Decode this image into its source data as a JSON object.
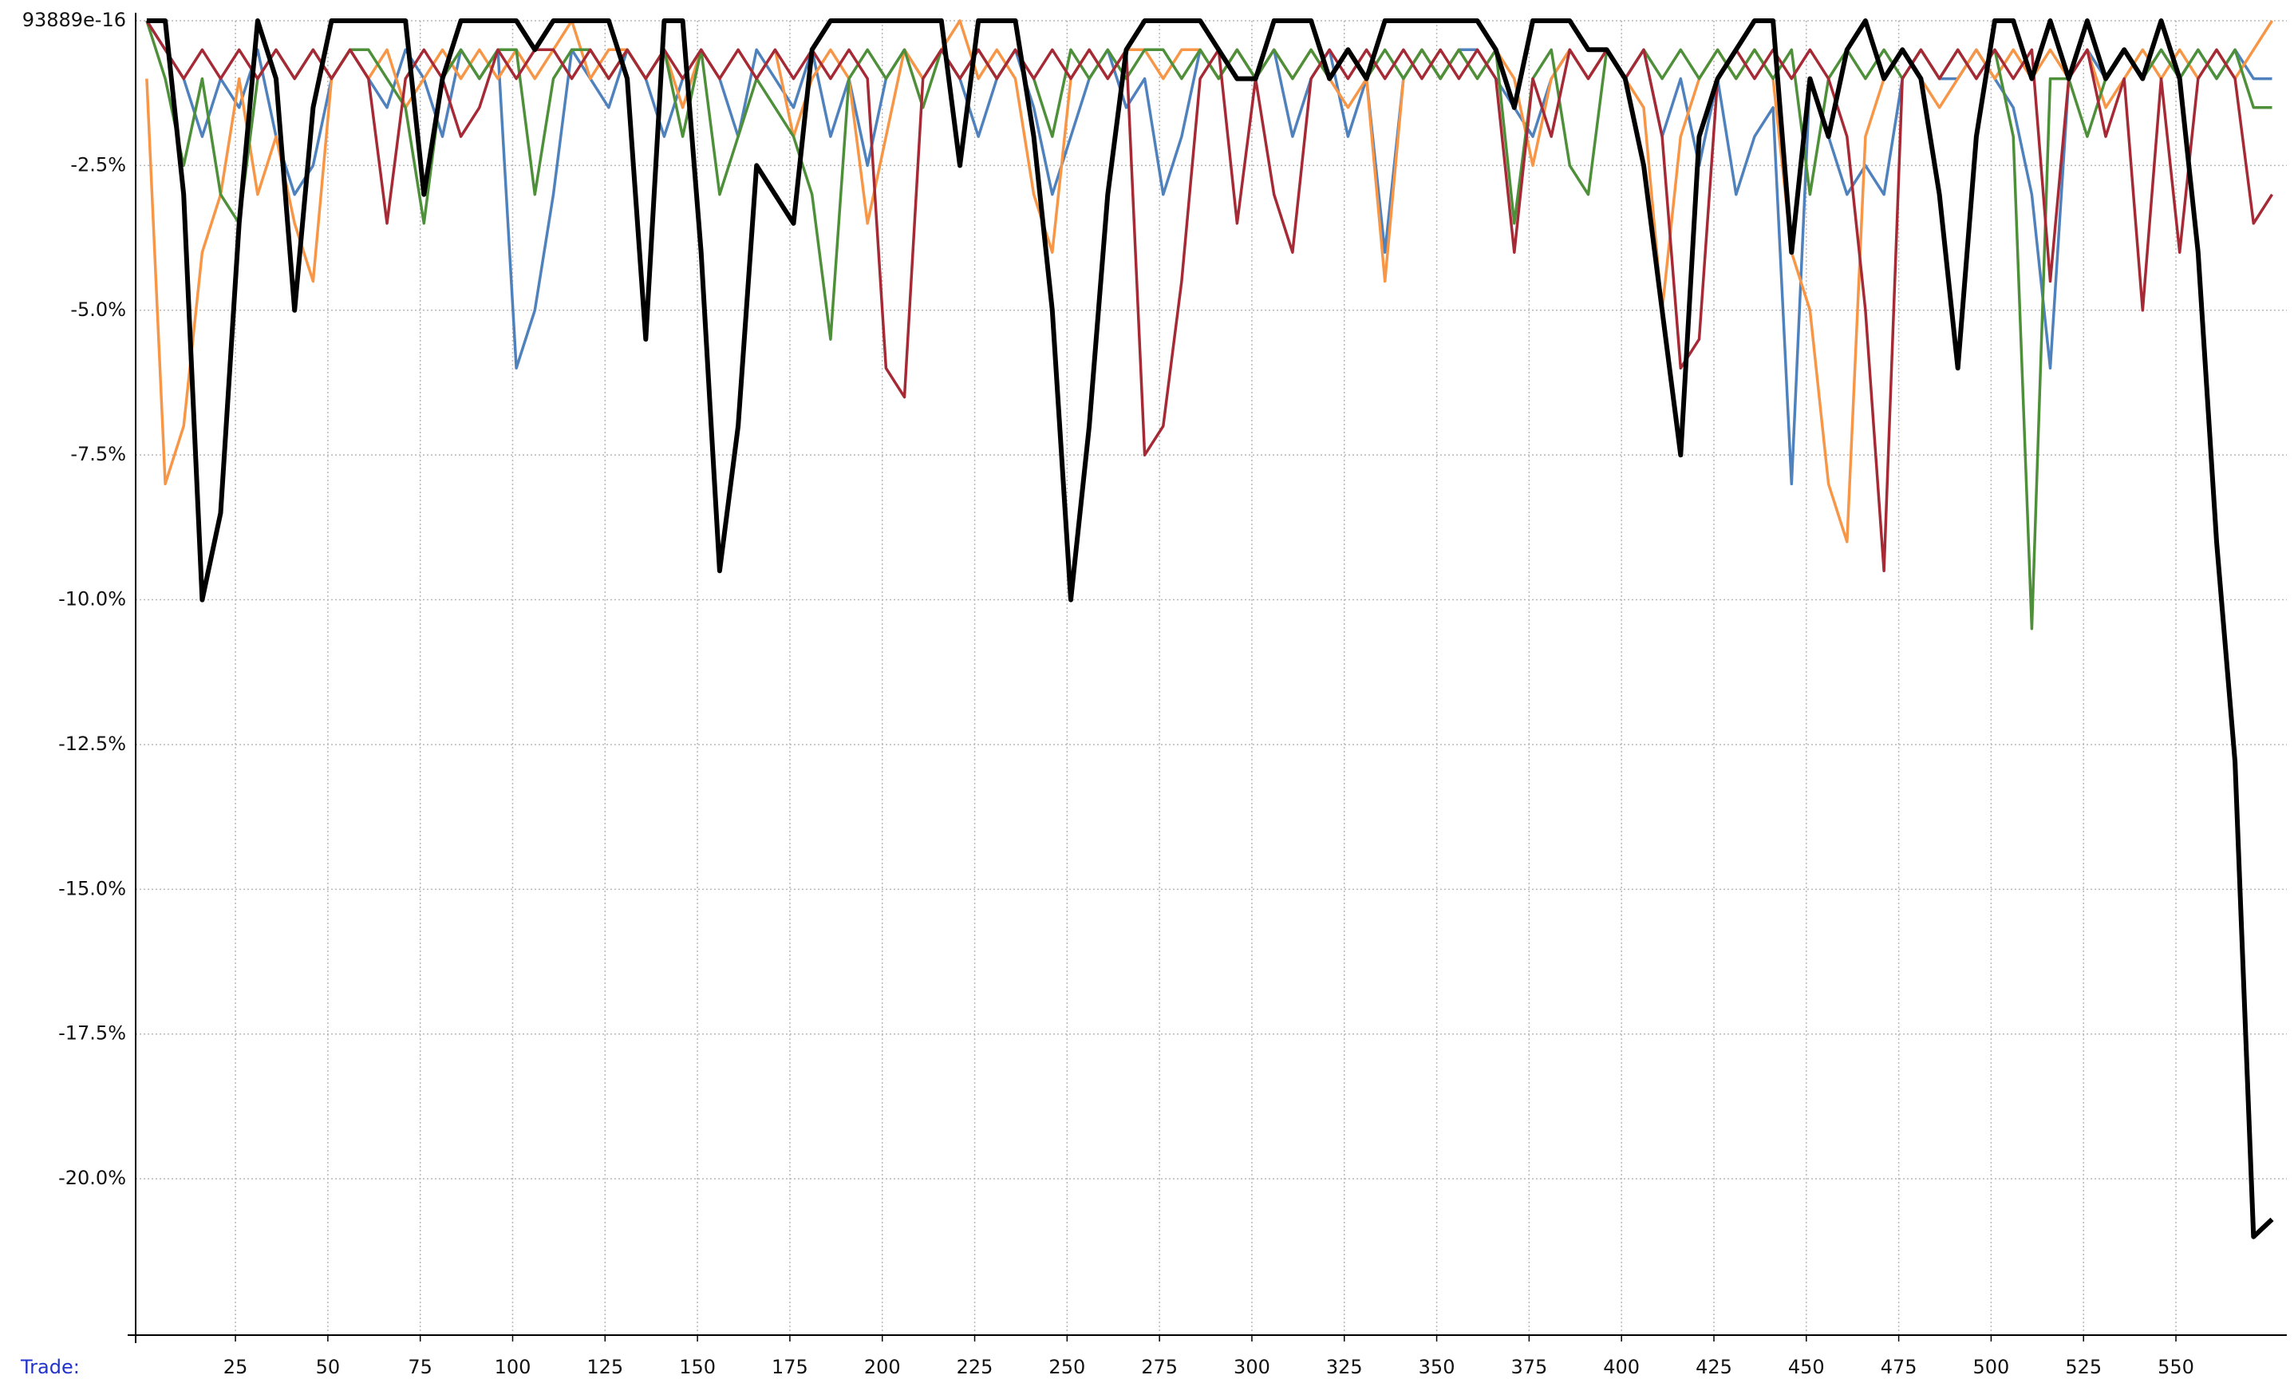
{
  "chart_data": {
    "type": "line",
    "x_label": "Trade:",
    "grid": true,
    "xlim": [
      -2,
      580
    ],
    "ylim": [
      -22.7,
      0
    ],
    "xticks": [
      25,
      50,
      75,
      100,
      125,
      150,
      175,
      200,
      225,
      250,
      275,
      300,
      325,
      350,
      375,
      400,
      425,
      450,
      475,
      500,
      525,
      550
    ],
    "yticks": [
      {
        "value": 0,
        "label": "93889e-16"
      },
      {
        "value": -2.5,
        "label": "-2.5%"
      },
      {
        "value": -5,
        "label": "-5.0%"
      },
      {
        "value": -7.5,
        "label": "-7.5%"
      },
      {
        "value": -10,
        "label": "-10.0%"
      },
      {
        "value": -12.5,
        "label": "-12.5%"
      },
      {
        "value": -15,
        "label": "-15.0%"
      },
      {
        "value": -17.5,
        "label": "-17.5%"
      },
      {
        "value": -20,
        "label": "-20.0%"
      }
    ],
    "x": [
      1,
      6,
      11,
      16,
      21,
      26,
      31,
      36,
      41,
      46,
      51,
      56,
      61,
      66,
      71,
      76,
      81,
      86,
      91,
      96,
      101,
      106,
      111,
      116,
      121,
      126,
      131,
      136,
      141,
      146,
      151,
      156,
      161,
      166,
      171,
      176,
      181,
      186,
      191,
      196,
      201,
      206,
      211,
      216,
      221,
      226,
      231,
      236,
      241,
      246,
      251,
      256,
      261,
      266,
      271,
      276,
      281,
      286,
      291,
      296,
      301,
      306,
      311,
      316,
      321,
      326,
      331,
      336,
      341,
      346,
      351,
      356,
      361,
      366,
      371,
      376,
      381,
      386,
      391,
      396,
      401,
      406,
      411,
      416,
      421,
      426,
      431,
      436,
      441,
      446,
      451,
      456,
      461,
      466,
      471,
      476,
      481,
      486,
      491,
      496,
      501,
      506,
      511,
      516,
      521,
      526,
      531,
      536,
      541,
      546,
      551,
      556,
      561,
      566,
      571,
      576
    ],
    "series": [
      {
        "color": "#4f81bd",
        "values": [
          0,
          -0.5,
          -1,
          -2,
          -1,
          -1.5,
          -0.5,
          -2,
          -3,
          -2.5,
          -1,
          -0.5,
          -1,
          -1.5,
          -0.5,
          -1,
          -2,
          -0.5,
          -1,
          -0.5,
          -6,
          -5,
          -3,
          -0.5,
          -1,
          -1.5,
          -0.5,
          -1,
          -2,
          -1,
          -0.5,
          -1,
          -2,
          -0.5,
          -1,
          -1.5,
          -0.5,
          -2,
          -1,
          -2.5,
          -1,
          -0.5,
          -1,
          -0.5,
          -1,
          -2,
          -1,
          -0.5,
          -1.5,
          -3,
          -2,
          -1,
          -0.5,
          -1.5,
          -1,
          -3,
          -2,
          -0.5,
          -1,
          -0.5,
          -1,
          -0.5,
          -2,
          -1,
          -0.5,
          -2,
          -1,
          -4,
          -1,
          -0.5,
          -1,
          -0.5,
          -0.5,
          -1,
          -1.5,
          -2,
          -1,
          -0.5,
          -1,
          -0.5,
          -1,
          -0.5,
          -2,
          -1,
          -2.5,
          -1,
          -3,
          -2,
          -1.5,
          -8,
          -1,
          -2,
          -3,
          -2.5,
          -3,
          -1,
          -0.5,
          -1,
          -1,
          -0.5,
          -1,
          -1.5,
          -3,
          -6,
          -1,
          -0.5,
          -1,
          -0.5,
          -1,
          -0.5,
          -1,
          -0.5,
          -1,
          -0.5,
          -1,
          -1
        ]
      },
      {
        "color": "#f79646",
        "values": [
          -1,
          -8,
          -7,
          -4,
          -3,
          -1,
          -3,
          -2,
          -3.5,
          -4.5,
          -1,
          -0.5,
          -1,
          -0.5,
          -1.5,
          -1,
          -0.5,
          -1,
          -0.5,
          -1,
          -0.5,
          -1,
          -0.5,
          0,
          -1,
          -0.5,
          -0.5,
          -1,
          -0.5,
          -1.5,
          -0.5,
          -1,
          -0.5,
          -1,
          -0.5,
          -2,
          -1,
          -0.5,
          -1,
          -3.5,
          -2,
          -0.5,
          -1,
          -0.5,
          0,
          -1,
          -0.5,
          -1,
          -3,
          -4,
          -1,
          -0.5,
          -1,
          -0.5,
          -0.5,
          -1,
          -0.5,
          -0.5,
          -1,
          -0.5,
          -1,
          -0.5,
          -1,
          -0.5,
          -1,
          -1.5,
          -1,
          -4.5,
          -1,
          -0.5,
          -1,
          -0.5,
          -1,
          -0.5,
          -1,
          -2.5,
          -1,
          -0.5,
          -1,
          -0.5,
          -1,
          -1.5,
          -5,
          -2,
          -1,
          -0.5,
          -1,
          -0.5,
          -1,
          -4,
          -5,
          -8,
          -9,
          -2,
          -1,
          -0.5,
          -1,
          -1.5,
          -1,
          -0.5,
          -1,
          -0.5,
          -1,
          -0.5,
          -1,
          -0.5,
          -1.5,
          -1,
          -0.5,
          -1,
          -0.5,
          -1,
          -0.5,
          -1,
          -0.5,
          0
        ]
      },
      {
        "color": "#4e8f3a",
        "values": [
          0,
          -1,
          -2.5,
          -1,
          -3,
          -3.5,
          -1,
          -0.5,
          -1,
          -0.5,
          -1,
          -0.5,
          -0.5,
          -1,
          -1.5,
          -3.5,
          -1,
          -0.5,
          -1,
          -0.5,
          -0.5,
          -3,
          -1,
          -0.5,
          -0.5,
          -1,
          -0.5,
          -1,
          -0.5,
          -2,
          -0.5,
          -3,
          -2,
          -1,
          -1.5,
          -2,
          -3,
          -5.5,
          -1,
          -0.5,
          -1,
          -0.5,
          -1.5,
          -0.5,
          -1,
          -0.5,
          -1,
          -0.5,
          -1,
          -2,
          -0.5,
          -1,
          -0.5,
          -1,
          -0.5,
          -0.5,
          -1,
          -0.5,
          -1,
          -0.5,
          -1,
          -0.5,
          -1,
          -0.5,
          -1,
          -0.5,
          -1,
          -0.5,
          -1,
          -0.5,
          -1,
          -0.5,
          -1,
          -0.5,
          -3.5,
          -1,
          -0.5,
          -2.5,
          -3,
          -0.5,
          -1,
          -0.5,
          -1,
          -0.5,
          -1,
          -0.5,
          -1,
          -0.5,
          -1,
          -0.5,
          -3,
          -1,
          -0.5,
          -1,
          -0.5,
          -1,
          -0.5,
          -1,
          -0.5,
          -1,
          -0.5,
          -2,
          -10.5,
          -1,
          -1,
          -2,
          -1,
          -0.5,
          -1,
          -0.5,
          -1,
          -0.5,
          -1,
          -0.5,
          -1.5,
          -1.5
        ]
      },
      {
        "color": "#a52a35",
        "values": [
          0,
          -0.5,
          -1,
          -0.5,
          -1,
          -0.5,
          -1,
          -0.5,
          -1,
          -0.5,
          -1,
          -0.5,
          -1,
          -3.5,
          -1,
          -0.5,
          -1,
          -2,
          -1.5,
          -0.5,
          -1,
          -0.5,
          -0.5,
          -1,
          -0.5,
          -1,
          -0.5,
          -1,
          -0.5,
          -1,
          -0.5,
          -1,
          -0.5,
          -1,
          -0.5,
          -1,
          -0.5,
          -1,
          -0.5,
          -1,
          -6,
          -6.5,
          -1,
          -0.5,
          -1,
          -0.5,
          -1,
          -0.5,
          -1,
          -0.5,
          -1,
          -0.5,
          -1,
          -0.5,
          -7.5,
          -7,
          -4.5,
          -1,
          -0.5,
          -3.5,
          -1,
          -3,
          -4,
          -1,
          -0.5,
          -1,
          -0.5,
          -1,
          -0.5,
          -1,
          -0.5,
          -1,
          -0.5,
          -1,
          -4,
          -1,
          -2,
          -0.5,
          -1,
          -0.5,
          -1,
          -0.5,
          -2,
          -6,
          -5.5,
          -1,
          -0.5,
          -1,
          -0.5,
          -1,
          -0.5,
          -1,
          -2,
          -5,
          -9.5,
          -1,
          -0.5,
          -1,
          -0.5,
          -1,
          -0.5,
          -1,
          -0.5,
          -4.5,
          -1,
          -0.5,
          -2,
          -1,
          -5,
          -1,
          -4,
          -1,
          -0.5,
          -1,
          -3.5,
          -3
        ]
      },
      {
        "color": "#000000",
        "values": [
          0,
          0,
          -3,
          -10,
          -8.5,
          -3.5,
          0,
          -1,
          -5,
          -1.5,
          0,
          0,
          0,
          0,
          0,
          -3,
          -1,
          0,
          0,
          0,
          0,
          -0.5,
          0,
          0,
          0,
          0,
          -1,
          -5.5,
          0,
          0,
          -4,
          -9.5,
          -7,
          -2.5,
          -3,
          -3.5,
          -0.5,
          0,
          0,
          0,
          0,
          0,
          0,
          0,
          -2.5,
          0,
          0,
          0,
          -2,
          -5,
          -10,
          -7,
          -3,
          -0.5,
          0,
          0,
          0,
          0,
          -0.5,
          -1,
          -1,
          0,
          0,
          0,
          -1,
          -0.5,
          -1,
          0,
          0,
          0,
          0,
          0,
          0,
          -0.5,
          -1.5,
          0,
          0,
          0,
          -0.5,
          -0.5,
          -1,
          -2.5,
          -5,
          -7.5,
          -2,
          -1,
          -0.5,
          0,
          0,
          -4,
          -1,
          -2,
          -0.5,
          0,
          -1,
          -0.5,
          -1,
          -3,
          -6,
          -2,
          0,
          0,
          -1,
          0,
          -1,
          0,
          -1,
          -0.5,
          -1,
          0,
          -1,
          -4,
          -9,
          -12.8,
          -21,
          -20.7
        ]
      }
    ]
  }
}
